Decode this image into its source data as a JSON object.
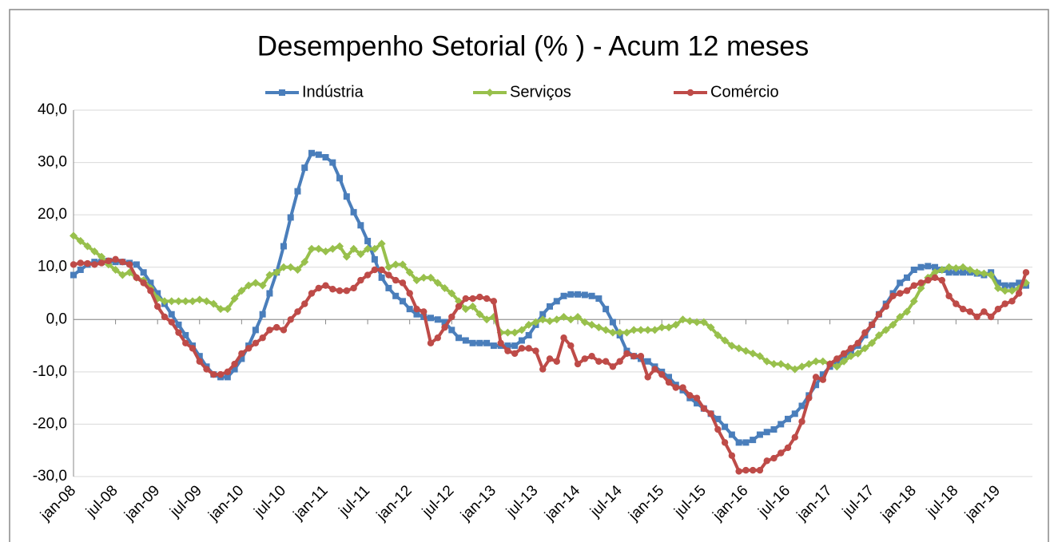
{
  "chart_data": {
    "type": "line",
    "title": "Desempenho Setorial (% ) - Acum 12 meses",
    "categories": [
      "jan-08",
      null,
      null,
      null,
      null,
      null,
      "jul-08",
      null,
      null,
      null,
      null,
      null,
      "jan-09",
      null,
      null,
      null,
      null,
      null,
      "jul-09",
      null,
      null,
      null,
      null,
      null,
      "jan-10",
      null,
      null,
      null,
      null,
      null,
      "jul-10",
      null,
      null,
      null,
      null,
      null,
      "jan-11",
      null,
      null,
      null,
      null,
      null,
      "jul-11",
      null,
      null,
      null,
      null,
      null,
      "jan-12",
      null,
      null,
      null,
      null,
      null,
      "jul-12",
      null,
      null,
      null,
      null,
      null,
      "jan-13",
      null,
      null,
      null,
      null,
      null,
      "jul-13",
      null,
      null,
      null,
      null,
      null,
      "jan-14",
      null,
      null,
      null,
      null,
      null,
      "jul-14",
      null,
      null,
      null,
      null,
      null,
      "jan-15",
      null,
      null,
      null,
      null,
      null,
      "jul-15",
      null,
      null,
      null,
      null,
      null,
      "jan-16",
      null,
      null,
      null,
      null,
      null,
      "jul-16",
      null,
      null,
      null,
      null,
      null,
      "jan-17",
      null,
      null,
      null,
      null,
      null,
      "jul-17",
      null,
      null,
      null,
      null,
      null,
      "jan-18",
      null,
      null,
      null,
      null,
      null,
      "jul-18",
      null,
      null,
      null,
      null,
      null,
      "jan-19",
      null,
      null,
      null,
      null
    ],
    "series": [
      {
        "name": "Indústria",
        "color": "#4a7ebb",
        "marker": "square",
        "values": [
          8.5,
          9.5,
          10.5,
          11,
          11,
          11.2,
          11,
          11,
          10.8,
          10.5,
          9,
          7,
          5,
          3,
          1,
          -1,
          -3,
          -5,
          -7,
          -9,
          -10.5,
          -11,
          -11,
          -9.5,
          -7.5,
          -5,
          -2,
          1,
          5,
          9,
          14,
          19.5,
          24.5,
          29,
          31.8,
          31.5,
          31,
          30,
          27,
          23.5,
          20.5,
          18,
          15,
          11.5,
          8,
          6,
          4.5,
          3.5,
          2,
          1,
          0.5,
          0.3,
          0,
          -0.5,
          -2,
          -3.5,
          -4,
          -4.5,
          -4.5,
          -4.5,
          -5,
          -5,
          -5,
          -5,
          -4,
          -3,
          -1,
          1,
          2.5,
          3.5,
          4.5,
          4.8,
          4.8,
          4.7,
          4.5,
          4,
          2,
          -0.5,
          -3,
          -6,
          -7,
          -7.5,
          -8,
          -9,
          -10,
          -11,
          -12.5,
          -13.5,
          -15,
          -16,
          -17,
          -18,
          -19,
          -20.5,
          -22,
          -23.5,
          -23.5,
          -23,
          -22,
          -21.5,
          -21,
          -20,
          -19,
          -18,
          -16.5,
          -14.5,
          -12.5,
          -10.5,
          -9,
          -8,
          -7,
          -6,
          -5,
          -3,
          -1,
          1,
          3,
          5,
          7,
          8,
          9.5,
          10,
          10.2,
          10,
          9.5,
          9,
          9,
          9,
          9,
          8.8,
          8.5,
          9,
          7,
          6.5,
          6.5,
          7,
          6.5
        ]
      },
      {
        "name": "Serviços",
        "color": "#98c04c",
        "marker": "diamond",
        "values": [
          16,
          15,
          14,
          13,
          12,
          10.5,
          9.5,
          8.5,
          9,
          8,
          7.5,
          6,
          4,
          3.5,
          3.5,
          3.5,
          3.5,
          3.5,
          3.8,
          3.5,
          3,
          2,
          2,
          4,
          5.5,
          6.5,
          7,
          6.5,
          8.5,
          9,
          10,
          10,
          9.5,
          11,
          13.5,
          13.5,
          13,
          13.5,
          14,
          12,
          13.5,
          12.5,
          13.5,
          13.5,
          14.5,
          10,
          10.5,
          10.5,
          9,
          7.5,
          8,
          8,
          7,
          6,
          5,
          3.5,
          2,
          2.5,
          1,
          0,
          0.5,
          -2.5,
          -2.5,
          -2.5,
          -2,
          -1,
          -0.5,
          0,
          -0.3,
          0,
          0.5,
          0,
          0.5,
          -0.5,
          -1,
          -1.5,
          -2,
          -2.5,
          -2.5,
          -2.5,
          -2,
          -2,
          -2,
          -2,
          -1.5,
          -1.5,
          -1,
          0,
          -0.3,
          -0.5,
          -0.5,
          -1.5,
          -3,
          -4,
          -5,
          -5.5,
          -6,
          -6.5,
          -7,
          -8,
          -8.5,
          -8.5,
          -9,
          -9.5,
          -9,
          -8.5,
          -8,
          -8,
          -8.5,
          -9,
          -8,
          -7,
          -6.5,
          -5.5,
          -4.5,
          -3,
          -2,
          -1,
          0.5,
          1.5,
          3.5,
          6,
          8,
          9,
          9.5,
          10,
          9.8,
          10,
          9.5,
          9,
          8.8,
          8.5,
          6,
          5.5,
          5.5,
          6,
          7
        ]
      },
      {
        "name": "Comércio",
        "color": "#be4b48",
        "marker": "circle",
        "values": [
          10.5,
          10.8,
          10.7,
          10.5,
          10.8,
          11.2,
          11.5,
          11,
          10.5,
          8,
          7,
          5.5,
          2.5,
          0.5,
          -0.5,
          -2.5,
          -4.5,
          -5.5,
          -8,
          -9.5,
          -10.5,
          -10.5,
          -10,
          -8.5,
          -6.5,
          -5.5,
          -4.5,
          -3.5,
          -2,
          -1.5,
          -2,
          0,
          1.5,
          3,
          5,
          6,
          6.5,
          5.8,
          5.5,
          5.5,
          6,
          7.5,
          8.5,
          9.5,
          9.5,
          8.5,
          7.5,
          7,
          5,
          2,
          1.5,
          -4.5,
          -3.5,
          -1.5,
          0.5,
          2.5,
          4,
          4,
          4.3,
          4,
          3.5,
          -4.5,
          -6,
          -6.5,
          -5.5,
          -5.5,
          -6,
          -9.5,
          -7.5,
          -8,
          -3.5,
          -5,
          -8.5,
          -7.5,
          -7,
          -8,
          -8,
          -9,
          -8,
          -6.5,
          -7,
          -7,
          -11,
          -9.5,
          -10.5,
          -12,
          -13,
          -13,
          -14.5,
          -15,
          -17,
          -18,
          -21,
          -23.5,
          -26,
          -29,
          -28.8,
          -28.8,
          -28.8,
          -27,
          -26.5,
          -25.5,
          -24.5,
          -22.5,
          -19.5,
          -15,
          -11,
          -11.5,
          -8.5,
          -7.5,
          -6.5,
          -5.5,
          -4.5,
          -2.5,
          -1,
          1,
          2.5,
          4.5,
          5,
          5.5,
          6.5,
          7,
          7.5,
          8,
          7.5,
          4.5,
          3,
          2,
          1.5,
          0.5,
          1.5,
          0.5,
          2,
          3,
          3.5,
          5,
          9
        ]
      }
    ],
    "ylim": [
      -30,
      40
    ],
    "yticks": [
      {
        "value": -30,
        "label": "-30,0"
      },
      {
        "value": -20,
        "label": "-20,0"
      },
      {
        "value": -10,
        "label": "-10,0"
      },
      {
        "value": 0,
        "label": "0,0"
      },
      {
        "value": 10,
        "label": "10,0"
      },
      {
        "value": 20,
        "label": "20,0"
      },
      {
        "value": 30,
        "label": "30,0"
      },
      {
        "value": 40,
        "label": "40,0"
      }
    ],
    "grid": true,
    "legend": "top"
  }
}
